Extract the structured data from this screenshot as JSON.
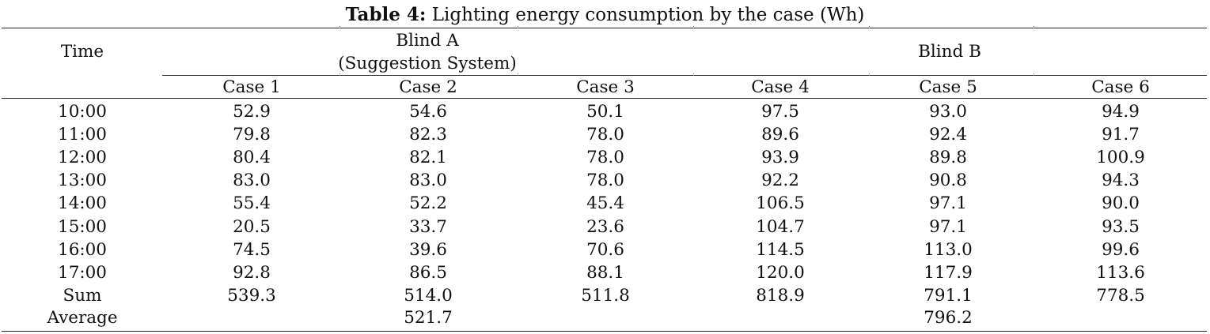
{
  "caption": {
    "label": "Table 4:",
    "text": " Lighting energy consumption by the case (Wh)"
  },
  "header": {
    "time": "Time",
    "group_a_line1": "Blind A",
    "group_a_line2": "(Suggestion System)",
    "group_b": "Blind B",
    "cases": [
      "Case 1",
      "Case 2",
      "Case 3",
      "Case 4",
      "Case 5",
      "Case 6"
    ]
  },
  "rows": [
    {
      "time": "10:00",
      "values": [
        "52.9",
        "54.6",
        "50.1",
        "97.5",
        "93.0",
        "94.9"
      ]
    },
    {
      "time": "11:00",
      "values": [
        "79.8",
        "82.3",
        "78.0",
        "89.6",
        "92.4",
        "91.7"
      ]
    },
    {
      "time": "12:00",
      "values": [
        "80.4",
        "82.1",
        "78.0",
        "93.9",
        "89.8",
        "100.9"
      ]
    },
    {
      "time": "13:00",
      "values": [
        "83.0",
        "83.0",
        "78.0",
        "92.2",
        "90.8",
        "94.3"
      ]
    },
    {
      "time": "14:00",
      "values": [
        "55.4",
        "52.2",
        "45.4",
        "106.5",
        "97.1",
        "90.0"
      ]
    },
    {
      "time": "15:00",
      "values": [
        "20.5",
        "33.7",
        "23.6",
        "104.7",
        "97.1",
        "93.5"
      ]
    },
    {
      "time": "16:00",
      "values": [
        "74.5",
        "39.6",
        "70.6",
        "114.5",
        "113.0",
        "99.6"
      ]
    },
    {
      "time": "17:00",
      "values": [
        "92.8",
        "86.5",
        "88.1",
        "120.0",
        "117.9",
        "113.6"
      ]
    },
    {
      "time": "Sum",
      "values": [
        "539.3",
        "514.0",
        "511.8",
        "818.9",
        "791.1",
        "778.5"
      ]
    }
  ],
  "average": {
    "label": "Average",
    "blind_a": "521.7",
    "blind_b": "796.2"
  }
}
